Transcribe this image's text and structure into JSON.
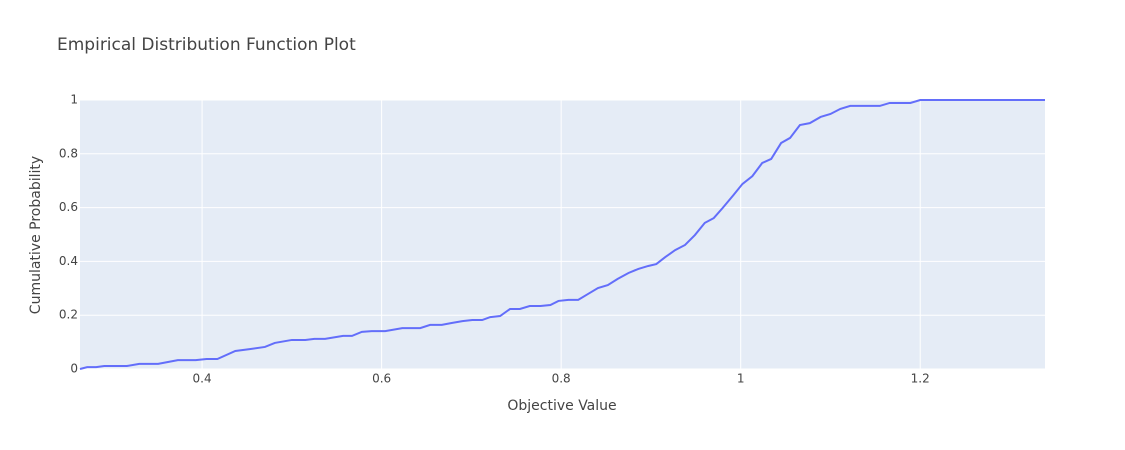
{
  "chart_data": {
    "type": "line",
    "title": "Empirical Distribution Function Plot",
    "xlabel": "Objective Value",
    "ylabel": "Cumulative Probability",
    "x": [
      0.264,
      0.272,
      0.282,
      0.291,
      0.316,
      0.33,
      0.351,
      0.362,
      0.373,
      0.393,
      0.405,
      0.417,
      0.437,
      0.453,
      0.47,
      0.481,
      0.5,
      0.515,
      0.525,
      0.537,
      0.557,
      0.567,
      0.578,
      0.589,
      0.604,
      0.623,
      0.643,
      0.654,
      0.667,
      0.678,
      0.69,
      0.701,
      0.712,
      0.721,
      0.732,
      0.743,
      0.754,
      0.765,
      0.777,
      0.788,
      0.797,
      0.808,
      0.819,
      0.83,
      0.841,
      0.852,
      0.863,
      0.875,
      0.886,
      0.897,
      0.906,
      0.916,
      0.927,
      0.938,
      0.949,
      0.96,
      0.97,
      0.98,
      0.992,
      1.002,
      1.013,
      1.024,
      1.034,
      1.045,
      1.055,
      1.066,
      1.077,
      1.089,
      1.1,
      1.111,
      1.122,
      1.155,
      1.166,
      1.189,
      1.2,
      1.339
    ],
    "series": [
      {
        "name": "Objective Value",
        "color": "#636efa",
        "values": [
          0,
          0.007,
          0.007,
          0.011,
          0.011,
          0.019,
          0.019,
          0.026,
          0.033,
          0.033,
          0.037,
          0.037,
          0.067,
          0.074,
          0.082,
          0.097,
          0.108,
          0.108,
          0.112,
          0.112,
          0.123,
          0.123,
          0.138,
          0.141,
          0.141,
          0.152,
          0.152,
          0.164,
          0.164,
          0.171,
          0.178,
          0.182,
          0.182,
          0.193,
          0.197,
          0.223,
          0.223,
          0.234,
          0.234,
          0.238,
          0.253,
          0.257,
          0.257,
          0.279,
          0.301,
          0.312,
          0.335,
          0.357,
          0.372,
          0.383,
          0.39,
          0.416,
          0.442,
          0.461,
          0.498,
          0.543,
          0.561,
          0.599,
          0.647,
          0.688,
          0.717,
          0.766,
          0.781,
          0.84,
          0.859,
          0.907,
          0.914,
          0.937,
          0.948,
          0.967,
          0.978,
          0.978,
          0.989,
          0.989,
          1,
          1
        ]
      }
    ],
    "xlim": [
      0.264,
      1.339
    ],
    "ylim": [
      0,
      1
    ],
    "xticks": [
      0.4,
      0.6,
      0.8,
      1,
      1.2
    ],
    "yticks": [
      0,
      0.2,
      0.4,
      0.6,
      0.8,
      1
    ],
    "grid": true
  }
}
